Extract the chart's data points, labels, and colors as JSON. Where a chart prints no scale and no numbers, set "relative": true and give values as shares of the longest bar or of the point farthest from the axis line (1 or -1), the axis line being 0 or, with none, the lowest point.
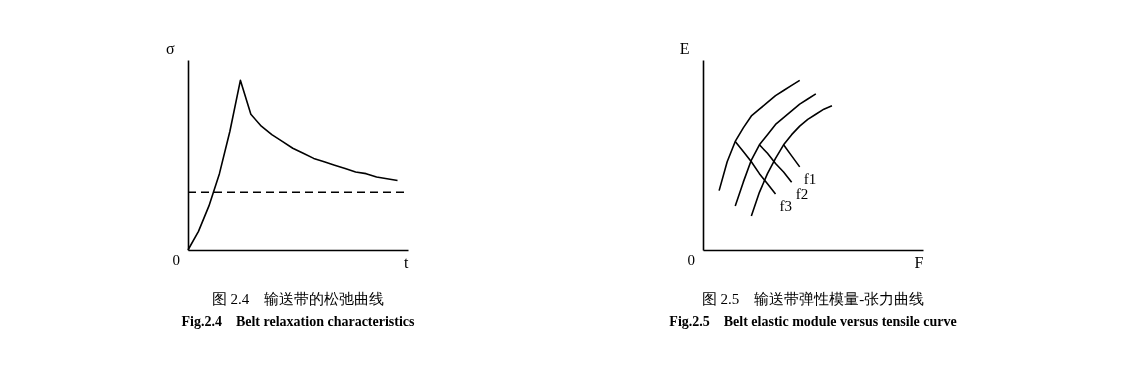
{
  "chart_data": [
    {
      "type": "line",
      "relative": true,
      "title": "图 2.4　输送带的松弛曲线",
      "subtitle": "Fig.2.4　Belt relaxation characteristics",
      "xlabel": "t",
      "ylabel": "σ",
      "annotations": [
        "0"
      ],
      "grid": false,
      "marker": "none",
      "categories": [
        null,
        null,
        null,
        null,
        null,
        null,
        null,
        null,
        null,
        null,
        null,
        null,
        null,
        null,
        null,
        null,
        null,
        null,
        null,
        null,
        null
      ],
      "series": [
        {
          "color": "#000000",
          "line_style": "solid",
          "values": [
            0,
            0.11,
            0.26,
            0.45,
            0.7,
            1.0,
            0.8,
            0.73,
            0.68,
            0.64,
            0.6,
            0.57,
            0.54,
            0.52,
            0.5,
            0.48,
            0.46,
            0.45,
            0.43,
            0.42,
            0.41
          ]
        }
      ],
      "ref_lines": [
        {
          "axis": "y",
          "value": 0.34,
          "color": "#000000",
          "line_style": "dashed"
        }
      ]
    },
    {
      "type": "line",
      "relative": true,
      "title": "图 2.5　输送带弹性模量-张力曲线",
      "subtitle": "Fig.2.5　Belt elastic module versus tensile curve",
      "xlabel": "F",
      "ylabel": "E",
      "annotations": [
        "0"
      ],
      "grid": false,
      "marker": "none",
      "categories": [
        null,
        null,
        null,
        null,
        null,
        null,
        null,
        null,
        null,
        null,
        null,
        null,
        null,
        null,
        null,
        null,
        null,
        null,
        null,
        null,
        null,
        null,
        null,
        null,
        null,
        null,
        null
      ],
      "series": [
        {
          "color": "#000000",
          "values": [
            null,
            null,
            0.35,
            0.52,
            0.64,
            0.72,
            0.79,
            0.83,
            0.87,
            0.91,
            0.94,
            0.97,
            1.0,
            null,
            null,
            null,
            null,
            null,
            null,
            null,
            null,
            null,
            null,
            null,
            null,
            null,
            null
          ]
        },
        {
          "color": "#000000",
          "values": [
            null,
            null,
            null,
            null,
            0.26,
            0.4,
            0.53,
            0.62,
            0.68,
            0.74,
            0.78,
            0.82,
            0.86,
            0.89,
            0.92,
            null,
            null,
            null,
            null,
            null,
            null,
            null,
            null,
            null,
            null,
            null,
            null
          ]
        },
        {
          "color": "#000000",
          "values": [
            null,
            null,
            null,
            null,
            null,
            null,
            0.2,
            0.34,
            0.45,
            0.54,
            0.62,
            0.68,
            0.73,
            0.77,
            0.8,
            0.83,
            0.85,
            null,
            null,
            null,
            null,
            null,
            null,
            null,
            null,
            null,
            null
          ]
        },
        {
          "name": "f1",
          "color": "#000000",
          "values": [
            null,
            null,
            null,
            null,
            null,
            null,
            null,
            null,
            null,
            null,
            0.62,
            0.555,
            0.49,
            null,
            null,
            null,
            null,
            null,
            null,
            null,
            null,
            null,
            null,
            null,
            null,
            null,
            null
          ]
        },
        {
          "name": "f2",
          "color": "#000000",
          "values": [
            null,
            null,
            null,
            null,
            null,
            null,
            null,
            0.62,
            0.57,
            0.51,
            0.46,
            0.4,
            null,
            null,
            null,
            null,
            null,
            null,
            null,
            null,
            null,
            null,
            null,
            null,
            null,
            null,
            null
          ]
        },
        {
          "name": "f3",
          "color": "#000000",
          "values": [
            null,
            null,
            null,
            null,
            0.64,
            0.58,
            0.52,
            0.45,
            0.39,
            0.33,
            null,
            null,
            null,
            null,
            null,
            null,
            null,
            null,
            null,
            null,
            null,
            null,
            null,
            null,
            null,
            null,
            null
          ]
        }
      ]
    }
  ]
}
